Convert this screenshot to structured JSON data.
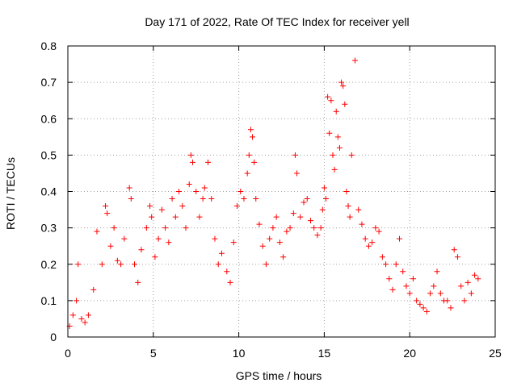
{
  "chart_data": {
    "type": "scatter",
    "title": "Day 171 of 2022, Rate Of TEC Index for receiver yell",
    "xlabel": "GPS time / hours",
    "ylabel": "ROTI / TECUs",
    "xlim": [
      0,
      25
    ],
    "ylim": [
      0,
      0.8
    ],
    "xticks": [
      "0",
      "5",
      "10",
      "15",
      "20",
      "25"
    ],
    "yticks": [
      "0",
      "0.1",
      "0.2",
      "0.3",
      "0.4",
      "0.5",
      "0.6",
      "0.7",
      "0.8"
    ],
    "grid": true,
    "marker": "plus",
    "color": "#ff0000",
    "series": [
      {
        "x": [
          0.1,
          0.3,
          0.5,
          0.6,
          0.8,
          1.0,
          1.2,
          1.5,
          1.7,
          2.0,
          2.2,
          2.3,
          2.5,
          2.7,
          2.9,
          3.1,
          3.3,
          3.6,
          3.7,
          3.9,
          4.1,
          4.3,
          4.6,
          4.8,
          4.9,
          5.1,
          5.3,
          5.5,
          5.7,
          5.9,
          6.1,
          6.3,
          6.5,
          6.7,
          6.9,
          7.1,
          7.2,
          7.3,
          7.5,
          7.7,
          7.9,
          8.0,
          8.2,
          8.4,
          8.6,
          8.8,
          9.0,
          9.3,
          9.5,
          9.7,
          9.9,
          10.1,
          10.3,
          10.5,
          10.6,
          10.7,
          10.8,
          10.9,
          11.0,
          11.2,
          11.4,
          11.6,
          11.8,
          12.0,
          12.2,
          12.4,
          12.6,
          12.8,
          13.0,
          13.2,
          13.3,
          13.4,
          13.6,
          13.8,
          14.0,
          14.2,
          14.4,
          14.6,
          14.8,
          14.9,
          15.0,
          15.1,
          15.2,
          15.3,
          15.4,
          15.5,
          15.6,
          15.7,
          15.8,
          15.9,
          16.0,
          16.1,
          16.2,
          16.3,
          16.4,
          16.5,
          16.6,
          16.8,
          17.0,
          17.2,
          17.4,
          17.6,
          17.8,
          18.0,
          18.2,
          18.4,
          18.6,
          18.8,
          19.0,
          19.2,
          19.4,
          19.6,
          19.8,
          20.0,
          20.2,
          20.4,
          20.6,
          20.8,
          21.0,
          21.2,
          21.4,
          21.6,
          21.8,
          22.0,
          22.2,
          22.4,
          22.6,
          22.8,
          23.0,
          23.2,
          23.4,
          23.6,
          23.8,
          24.0
        ],
        "y": [
          0.03,
          0.06,
          0.1,
          0.2,
          0.05,
          0.04,
          0.06,
          0.13,
          0.29,
          0.2,
          0.36,
          0.34,
          0.25,
          0.3,
          0.21,
          0.2,
          0.27,
          0.41,
          0.38,
          0.2,
          0.15,
          0.24,
          0.3,
          0.36,
          0.33,
          0.22,
          0.27,
          0.35,
          0.3,
          0.26,
          0.38,
          0.33,
          0.4,
          0.36,
          0.3,
          0.42,
          0.5,
          0.48,
          0.4,
          0.33,
          0.38,
          0.41,
          0.48,
          0.38,
          0.27,
          0.2,
          0.23,
          0.18,
          0.15,
          0.26,
          0.36,
          0.4,
          0.38,
          0.45,
          0.5,
          0.57,
          0.55,
          0.48,
          0.38,
          0.31,
          0.25,
          0.2,
          0.27,
          0.3,
          0.33,
          0.26,
          0.22,
          0.29,
          0.3,
          0.34,
          0.5,
          0.45,
          0.33,
          0.37,
          0.38,
          0.32,
          0.3,
          0.28,
          0.3,
          0.35,
          0.41,
          0.38,
          0.66,
          0.56,
          0.65,
          0.5,
          0.46,
          0.62,
          0.55,
          0.52,
          0.7,
          0.69,
          0.64,
          0.4,
          0.36,
          0.33,
          0.5,
          0.76,
          0.35,
          0.31,
          0.27,
          0.25,
          0.26,
          0.3,
          0.29,
          0.22,
          0.2,
          0.16,
          0.13,
          0.2,
          0.27,
          0.18,
          0.14,
          0.12,
          0.16,
          0.1,
          0.09,
          0.08,
          0.07,
          0.12,
          0.14,
          0.18,
          0.12,
          0.1,
          0.1,
          0.08,
          0.24,
          0.22,
          0.14,
          0.1,
          0.15,
          0.12,
          0.17,
          0.16
        ]
      }
    ]
  }
}
